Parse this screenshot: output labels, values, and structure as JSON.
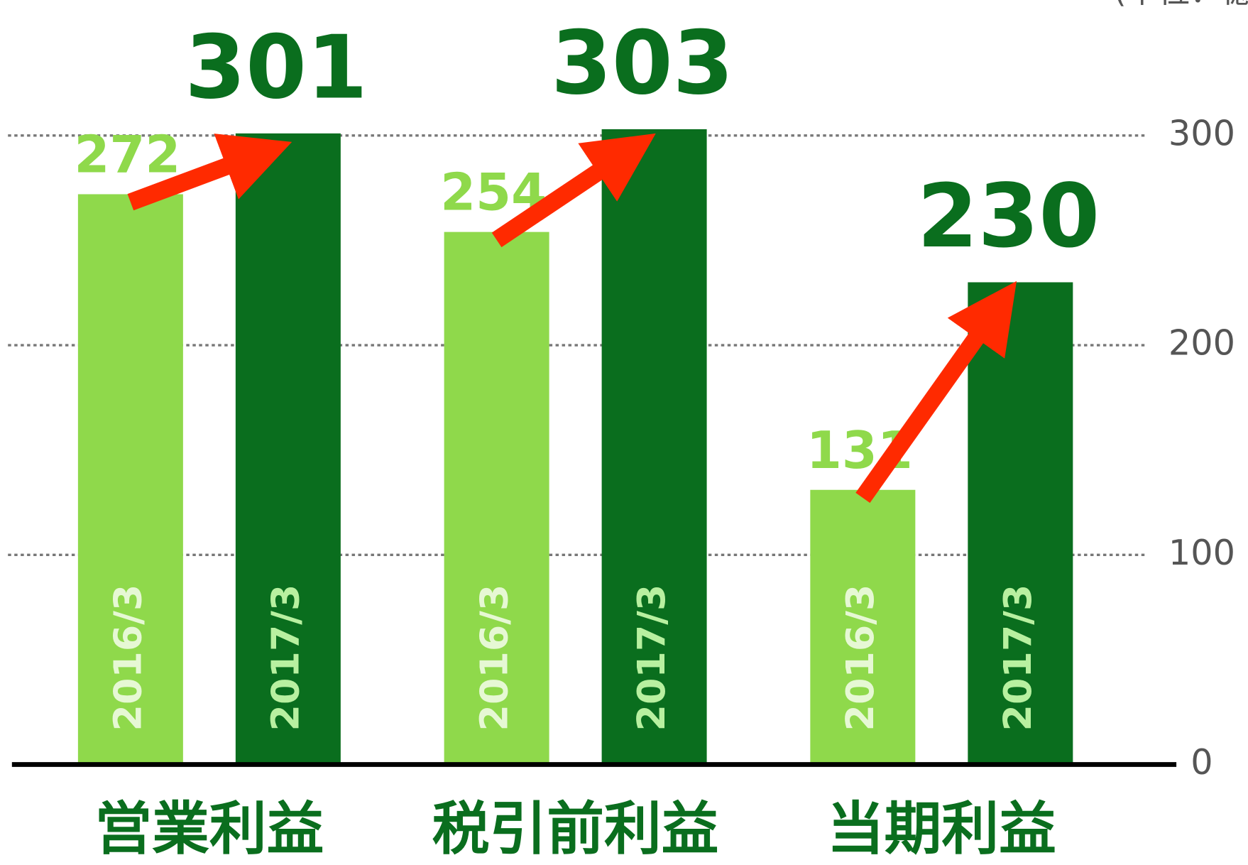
{
  "chart_data": {
    "type": "bar",
    "unit_label": "(単位：億円)",
    "categories": [
      "営業利益",
      "税引前利益",
      "当期利益"
    ],
    "series": [
      {
        "name": "2016/3",
        "color": "#8fd94b",
        "values": [
          272,
          254,
          131
        ]
      },
      {
        "name": "2017/3",
        "color": "#0a6e1e",
        "values": [
          301,
          303,
          230
        ]
      }
    ],
    "ylim": [
      0,
      300
    ],
    "yticks": [
      0,
      100,
      200,
      300
    ],
    "grid": true,
    "y_axis_side": "right"
  }
}
